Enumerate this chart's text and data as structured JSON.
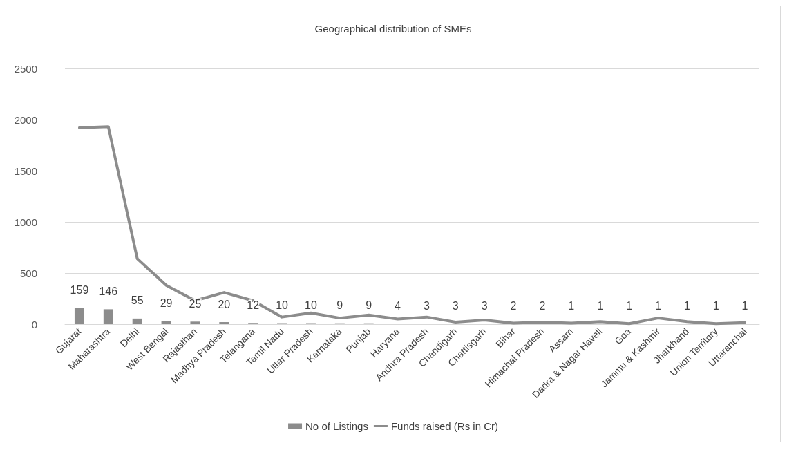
{
  "chart_data": {
    "type": "bar",
    "title": "Geographical distribution of SMEs",
    "categories": [
      "Gujarat",
      "Maharashtra",
      "Delhi",
      "West Bengal",
      "Rajasthan",
      "Madhya Pradesh",
      "Telangana",
      "Tamil Nadu",
      "Uttar Pradesh",
      "Karnataka",
      "Punjab",
      "Haryana",
      "Andhra Pradesh",
      "Chandigarh",
      "Chattisgarh",
      "Bihar",
      "Himachal Pradesh",
      "Assam",
      "Dadra & Nagar Haveli",
      "Goa",
      "Jammu & Kashmir",
      "Jharkhand",
      "Union Territory",
      "Uttaranchal"
    ],
    "series": [
      {
        "name": "No of Listings",
        "color": "#8c8c8c",
        "data_labels": true,
        "values": [
          159,
          146,
          55,
          29,
          25,
          20,
          12,
          10,
          10,
          9,
          9,
          4,
          3,
          3,
          3,
          2,
          2,
          1,
          1,
          1,
          1,
          1,
          1,
          1
        ]
      },
      {
        "name": "Funds raised (Rs in Cr)",
        "type": "line",
        "color": "#8c8c8c",
        "values": [
          1920,
          1930,
          640,
          380,
          230,
          310,
          230,
          70,
          110,
          60,
          90,
          50,
          70,
          20,
          40,
          10,
          20,
          10,
          25,
          5,
          60,
          25,
          5,
          15
        ]
      }
    ],
    "ylim": [
      0,
      2500
    ],
    "yticks": [
      0,
      500,
      1000,
      1500,
      2000,
      2500
    ],
    "grid": "y",
    "legend": "bottom",
    "marker": "none",
    "line_style": "solid"
  }
}
